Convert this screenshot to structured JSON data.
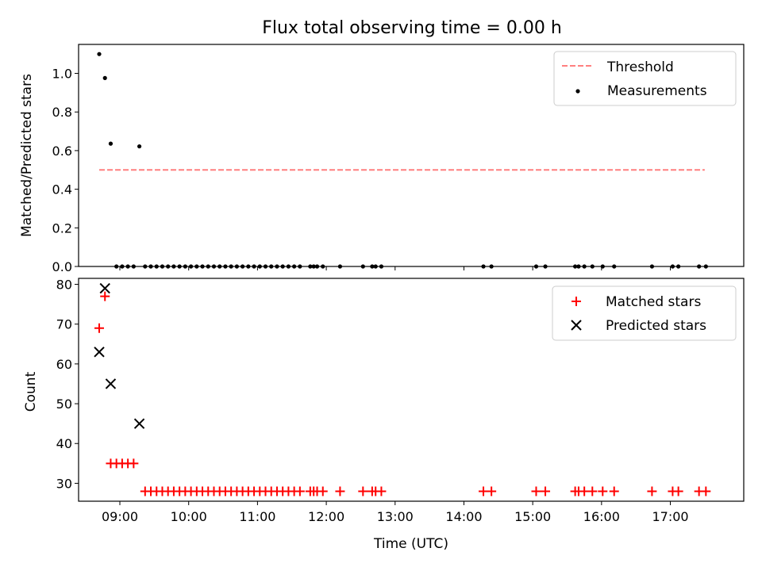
{
  "chart_data": {
    "title": "Flux total observing time = 0.00 h",
    "xlabel": "Time (UTC)",
    "x_ticks": [
      "09:00",
      "10:00",
      "11:00",
      "12:00",
      "13:00",
      "14:00",
      "15:00",
      "16:00",
      "17:00"
    ],
    "xlim": [
      "08:24",
      "18:04"
    ],
    "panels": [
      {
        "type": "scatter",
        "ylabel": "Matched/Predicted stars",
        "ylim": [
          0,
          1.15
        ],
        "y_ticks": [
          "0.0",
          "0.2",
          "0.4",
          "0.6",
          "0.8",
          "1.0"
        ],
        "legend_position": "top-right",
        "threshold": {
          "name": "Threshold",
          "value": 0.5,
          "x_range": [
            "08:42",
            "17:30"
          ],
          "color": "#ff7f7f",
          "style": "dashed"
        },
        "series": [
          {
            "name": "Measurements",
            "marker": "dot",
            "color": "#000000",
            "points": [
              [
                "08:42",
                1.1
              ],
              [
                "08:47",
                0.976
              ],
              [
                "08:52",
                0.636
              ],
              [
                "09:17",
                0.622
              ],
              [
                "08:57",
                0
              ],
              [
                "09:02",
                0
              ],
              [
                "09:07",
                0
              ],
              [
                "09:12",
                0
              ],
              [
                "09:22",
                0
              ],
              [
                "09:27",
                0
              ],
              [
                "09:32",
                0
              ],
              [
                "09:37",
                0
              ],
              [
                "09:42",
                0
              ],
              [
                "09:47",
                0
              ],
              [
                "09:52",
                0
              ],
              [
                "09:57",
                0
              ],
              [
                "10:02",
                0
              ],
              [
                "10:07",
                0
              ],
              [
                "10:12",
                0
              ],
              [
                "10:17",
                0
              ],
              [
                "10:22",
                0
              ],
              [
                "10:27",
                0
              ],
              [
                "10:32",
                0
              ],
              [
                "10:37",
                0
              ],
              [
                "10:42",
                0
              ],
              [
                "10:47",
                0
              ],
              [
                "10:52",
                0
              ],
              [
                "10:57",
                0
              ],
              [
                "11:02",
                0
              ],
              [
                "11:07",
                0
              ],
              [
                "11:12",
                0
              ],
              [
                "11:17",
                0
              ],
              [
                "11:22",
                0
              ],
              [
                "11:27",
                0
              ],
              [
                "11:32",
                0
              ],
              [
                "11:37",
                0
              ],
              [
                "11:46",
                0
              ],
              [
                "11:49",
                0
              ],
              [
                "11:52",
                0
              ],
              [
                "11:57",
                0
              ],
              [
                "12:12",
                0
              ],
              [
                "12:32",
                0
              ],
              [
                "12:40",
                0
              ],
              [
                "12:43",
                0
              ],
              [
                "12:48",
                0
              ],
              [
                "14:17",
                0
              ],
              [
                "14:24",
                0
              ],
              [
                "15:03",
                0
              ],
              [
                "15:11",
                0
              ],
              [
                "15:37",
                0
              ],
              [
                "15:40",
                0
              ],
              [
                "15:45",
                0
              ],
              [
                "15:52",
                0
              ],
              [
                "16:01",
                0
              ],
              [
                "16:11",
                0
              ],
              [
                "16:44",
                0
              ],
              [
                "17:02",
                0
              ],
              [
                "17:07",
                0
              ],
              [
                "17:25",
                0
              ],
              [
                "17:31",
                0
              ]
            ]
          }
        ]
      },
      {
        "type": "scatter",
        "ylabel": "Count",
        "ylim": [
          25.5,
          81.5
        ],
        "y_ticks": [
          "30",
          "40",
          "50",
          "60",
          "70",
          "80"
        ],
        "legend_position": "top-right",
        "series": [
          {
            "name": "Matched stars",
            "marker": "plus",
            "color": "#ff0000",
            "points": [
              [
                "08:42",
                69
              ],
              [
                "08:47",
                77
              ],
              [
                "08:52",
                35
              ],
              [
                "08:57",
                35
              ],
              [
                "09:02",
                35
              ],
              [
                "09:07",
                35
              ],
              [
                "09:12",
                35
              ],
              [
                "09:22",
                28
              ],
              [
                "09:27",
                28
              ],
              [
                "09:32",
                28
              ],
              [
                "09:37",
                28
              ],
              [
                "09:42",
                28
              ],
              [
                "09:47",
                28
              ],
              [
                "09:52",
                28
              ],
              [
                "09:57",
                28
              ],
              [
                "10:02",
                28
              ],
              [
                "10:07",
                28
              ],
              [
                "10:12",
                28
              ],
              [
                "10:17",
                28
              ],
              [
                "10:22",
                28
              ],
              [
                "10:27",
                28
              ],
              [
                "10:32",
                28
              ],
              [
                "10:37",
                28
              ],
              [
                "10:42",
                28
              ],
              [
                "10:47",
                28
              ],
              [
                "10:52",
                28
              ],
              [
                "10:57",
                28
              ],
              [
                "11:02",
                28
              ],
              [
                "11:07",
                28
              ],
              [
                "11:12",
                28
              ],
              [
                "11:17",
                28
              ],
              [
                "11:22",
                28
              ],
              [
                "11:27",
                28
              ],
              [
                "11:32",
                28
              ],
              [
                "11:37",
                28
              ],
              [
                "11:46",
                28
              ],
              [
                "11:49",
                28
              ],
              [
                "11:52",
                28
              ],
              [
                "11:57",
                28
              ],
              [
                "12:12",
                28
              ],
              [
                "12:32",
                28
              ],
              [
                "12:40",
                28
              ],
              [
                "12:43",
                28
              ],
              [
                "12:48",
                28
              ],
              [
                "14:17",
                28
              ],
              [
                "14:24",
                28
              ],
              [
                "15:03",
                28
              ],
              [
                "15:11",
                28
              ],
              [
                "15:37",
                28
              ],
              [
                "15:40",
                28
              ],
              [
                "15:45",
                28
              ],
              [
                "15:52",
                28
              ],
              [
                "16:01",
                28
              ],
              [
                "16:11",
                28
              ],
              [
                "16:44",
                28
              ],
              [
                "17:02",
                28
              ],
              [
                "17:07",
                28
              ],
              [
                "17:25",
                28
              ],
              [
                "17:31",
                28
              ]
            ]
          },
          {
            "name": "Predicted stars",
            "marker": "x",
            "color": "#000000",
            "points": [
              [
                "08:42",
                63
              ],
              [
                "08:47",
                79
              ],
              [
                "08:52",
                55
              ],
              [
                "09:17",
                45
              ]
            ]
          }
        ]
      }
    ]
  }
}
